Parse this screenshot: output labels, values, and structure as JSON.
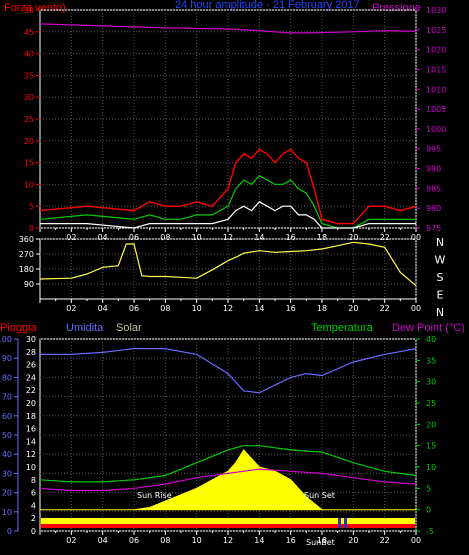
{
  "header": {
    "left": "Forza vento)",
    "center": "24 hour amplitude · 21 February 2017",
    "right": "Pressione"
  },
  "legend_bottom": {
    "pioggia": "Pioggia",
    "umidita": "Umidita",
    "solar": "Solar",
    "temperatura": "Temperatura",
    "dew_point": "Dew Point (°C)"
  },
  "annotations": {
    "sunrise": "Sun Rise",
    "sunset": "Sun Set",
    "sunbet": "SunBet"
  },
  "colors": {
    "wind_gust": "#ff0000",
    "wind_avg": "#00cc00",
    "wind_min": "#ffffff",
    "pressure": "#cc00cc",
    "direction": "#ffff44",
    "humidity": "#6a6aff",
    "temperature": "#00cc00",
    "dewpoint": "#cc00cc",
    "solar": "#ffff00",
    "rain": "#ff0000"
  },
  "chart_data": [
    {
      "type": "line",
      "name": "wind-pressure",
      "x_ticks": [
        "02",
        "04",
        "06",
        "08",
        "10",
        "12",
        "14",
        "16",
        "18",
        "20",
        "22",
        "00"
      ],
      "ylim_left": [
        0,
        50
      ],
      "y_ticks_left": [
        "0",
        "5",
        "10",
        "15",
        "20",
        "25",
        "30",
        "35",
        "40",
        "45",
        "50"
      ],
      "ylim_right": [
        975,
        1030
      ],
      "y_ticks_right": [
        "975",
        "980",
        "985",
        "990",
        "995",
        "1000",
        "1005",
        "1010",
        "1015",
        "1020",
        "1025",
        "1030"
      ],
      "series": [
        {
          "key": "gust",
          "x": [
            0,
            3,
            6,
            7,
            8,
            9,
            10,
            11,
            12,
            12.5,
            13,
            13.5,
            14,
            14.5,
            15,
            15.5,
            16,
            16.5,
            17,
            17.5,
            18,
            19,
            20,
            21,
            22,
            23,
            24
          ],
          "values": [
            4,
            5,
            4,
            6,
            5,
            5,
            6,
            5,
            9,
            15,
            17,
            16,
            18,
            17,
            15,
            17,
            18,
            16,
            15,
            9,
            2,
            1,
            1,
            5,
            5,
            4,
            5
          ]
        },
        {
          "key": "avg",
          "x": [
            0,
            3,
            6,
            7,
            8,
            9,
            10,
            11,
            12,
            12.5,
            13,
            13.5,
            14,
            14.5,
            15,
            15.5,
            16,
            16.5,
            17,
            17.5,
            18,
            19,
            20,
            21,
            22,
            23,
            24
          ],
          "values": [
            2,
            3,
            2,
            3,
            2,
            2,
            3,
            3,
            5,
            9,
            11,
            10,
            12,
            11,
            10,
            10,
            11,
            9,
            8,
            5,
            1,
            0,
            0,
            2,
            2,
            2,
            2
          ]
        },
        {
          "key": "min",
          "x": [
            0,
            3,
            6,
            7,
            8,
            9,
            10,
            11,
            12,
            12.5,
            13,
            13.5,
            14,
            14.5,
            15,
            15.5,
            16,
            16.5,
            17,
            17.5,
            18,
            19,
            20,
            21,
            22,
            23,
            24
          ],
          "values": [
            1,
            1,
            0,
            1,
            1,
            1,
            1,
            1,
            2,
            4,
            5,
            4,
            6,
            5,
            4,
            5,
            5,
            3,
            3,
            2,
            0,
            0,
            0,
            1,
            1,
            1,
            1
          ]
        },
        {
          "key": "pressure",
          "x": [
            0,
            4,
            8,
            12,
            14,
            16,
            18,
            20,
            22,
            24
          ],
          "values": [
            1026.5,
            1026,
            1025.5,
            1025.2,
            1024.8,
            1024.2,
            1024.3,
            1024.5,
            1024.8,
            1024.6
          ]
        }
      ]
    },
    {
      "type": "line",
      "name": "wind-direction",
      "x_ticks": [
        "02",
        "04",
        "06",
        "08",
        "10",
        "12",
        "14",
        "16",
        "18",
        "20",
        "22",
        "00"
      ],
      "ylim": [
        0,
        360
      ],
      "y_ticks": [
        "90",
        "180",
        "270",
        "360"
      ],
      "direction_labels": [
        "N",
        "W",
        "S",
        "E",
        "N"
      ],
      "series": [
        {
          "key": "direction",
          "x": [
            0,
            2,
            3,
            4,
            5,
            5.5,
            6,
            6.5,
            7,
            8,
            9,
            10,
            11,
            12,
            12.5,
            13,
            14,
            15,
            16,
            17,
            18,
            19,
            20,
            21,
            22,
            23,
            24
          ],
          "values": [
            120,
            125,
            150,
            190,
            200,
            330,
            330,
            140,
            135,
            135,
            130,
            125,
            175,
            230,
            250,
            275,
            290,
            280,
            285,
            290,
            300,
            320,
            340,
            330,
            310,
            160,
            80
          ]
        }
      ]
    },
    {
      "type": "line",
      "name": "humidity-temperature-solar",
      "x_ticks": [
        "02",
        "04",
        "06",
        "08",
        "10",
        "12",
        "14",
        "16",
        "18",
        "20",
        "22",
        "00"
      ],
      "ylim_humidity": [
        0,
        100
      ],
      "y_ticks_pioggia": [
        "0",
        "10",
        "20",
        "30",
        "40",
        "50",
        "60",
        "70",
        "80",
        "90",
        "100"
      ],
      "ylim_temp_left": [
        0,
        30
      ],
      "y_ticks_left_inner": [
        "0",
        "2",
        "4",
        "6",
        "8",
        "10",
        "12",
        "14",
        "16",
        "18",
        "20",
        "22",
        "24",
        "26",
        "28",
        "30"
      ],
      "ylim_temp": [
        -5,
        40
      ],
      "y_ticks_temp": [
        "-5",
        "0",
        "5",
        "10",
        "15",
        "20",
        "25",
        "30",
        "35",
        "40"
      ],
      "series": [
        {
          "key": "humidity",
          "x": [
            0,
            2,
            4,
            6,
            8,
            10,
            12,
            13,
            14,
            15,
            16,
            17,
            18,
            20,
            22,
            24
          ],
          "values": [
            92,
            92,
            93,
            95,
            95,
            92,
            82,
            73,
            72,
            76,
            80,
            82,
            81,
            88,
            92,
            95
          ]
        },
        {
          "key": "temperature",
          "x": [
            0,
            2,
            4,
            6,
            8,
            10,
            12,
            13,
            14,
            15,
            16,
            18,
            20,
            22,
            24
          ],
          "values": [
            7,
            6.5,
            6.5,
            7,
            8,
            11,
            14,
            15,
            15,
            14.5,
            14,
            13.5,
            11,
            9,
            8
          ]
        },
        {
          "key": "dewpoint",
          "x": [
            0,
            2,
            4,
            6,
            8,
            10,
            12,
            14,
            16,
            18,
            20,
            22,
            24
          ],
          "values": [
            5,
            4.5,
            4.5,
            5,
            6,
            7.5,
            8.5,
            9.5,
            9,
            8.5,
            7.5,
            6.5,
            6
          ]
        },
        {
          "key": "solar",
          "x": [
            0,
            6,
            7,
            8,
            9,
            10,
            11,
            12,
            12.5,
            13,
            13.5,
            14,
            14.5,
            15,
            15.5,
            16,
            16.5,
            17,
            18,
            24
          ],
          "values": [
            0,
            0,
            0.5,
            2,
            3.5,
            5,
            7,
            9,
            11,
            14,
            12,
            10,
            9.5,
            9,
            8,
            7,
            5,
            3,
            0,
            0
          ]
        }
      ]
    }
  ]
}
